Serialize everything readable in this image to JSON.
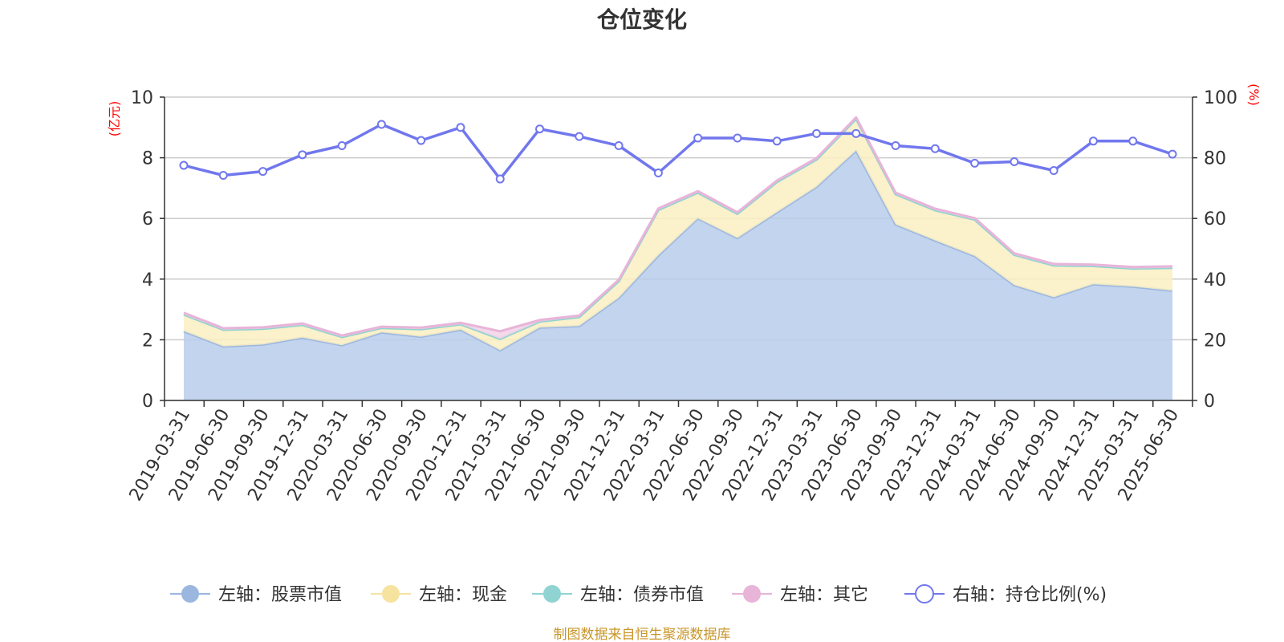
{
  "chart_data": {
    "type": "area",
    "title": "仓位变化",
    "left_unit": "(亿元)",
    "right_unit": "(%)",
    "source": "制图数据来自恒生聚源数据库",
    "y_left_lim": [
      0,
      10
    ],
    "y_left_ticks": [
      "0",
      "2",
      "4",
      "6",
      "8",
      "10"
    ],
    "y_right_lim": [
      0,
      100
    ],
    "y_right_ticks": [
      "0",
      "20",
      "40",
      "60",
      "80",
      "100"
    ],
    "grid": true,
    "legend_position": "bottom",
    "categories": [
      "2019-03-31",
      "2019-06-30",
      "2019-09-30",
      "2019-12-31",
      "2020-03-31",
      "2020-06-30",
      "2020-09-30",
      "2020-12-31",
      "2021-03-31",
      "2021-06-30",
      "2021-09-30",
      "2021-12-31",
      "2022-03-31",
      "2022-06-30",
      "2022-09-30",
      "2022-12-31",
      "2023-03-31",
      "2023-06-30",
      "2023-09-30",
      "2023-12-31",
      "2024-03-31",
      "2024-06-30",
      "2024-09-30",
      "2024-12-31",
      "2025-03-31",
      "2025-06-30"
    ],
    "series": [
      {
        "name": "左轴：股票市值",
        "axis": "left",
        "color": "#9bb7e0",
        "fill": "#b8cdeb",
        "values": [
          2.28,
          1.78,
          1.84,
          2.07,
          1.82,
          2.24,
          2.1,
          2.33,
          1.65,
          2.4,
          2.45,
          3.38,
          4.78,
          6.0,
          5.35,
          6.2,
          7.04,
          8.23,
          5.8,
          5.27,
          4.76,
          3.8,
          3.4,
          3.83,
          3.75,
          3.62
        ]
      },
      {
        "name": "左轴：现金",
        "axis": "left",
        "color": "#f7e3a0",
        "fill": "#faeec2",
        "values": [
          0.55,
          0.55,
          0.52,
          0.42,
          0.27,
          0.15,
          0.25,
          0.18,
          0.38,
          0.2,
          0.3,
          0.55,
          1.5,
          0.85,
          0.8,
          1.0,
          0.9,
          1.05,
          1.0,
          1.0,
          1.2,
          1.0,
          1.05,
          0.6,
          0.6,
          0.75
        ]
      },
      {
        "name": "左轴：债券市值",
        "axis": "left",
        "color": "#8fd3d3",
        "fill": "#bfe6e6",
        "values": [
          0,
          0,
          0,
          0,
          0,
          0,
          0,
          0,
          0,
          0,
          0,
          0,
          0,
          0,
          0,
          0,
          0,
          0,
          0,
          0,
          0,
          0,
          0,
          0,
          0,
          0
        ]
      },
      {
        "name": "左轴：其它",
        "axis": "left",
        "color": "#e8b4d8",
        "fill": "#f2d2e8",
        "values": [
          0.06,
          0.05,
          0.05,
          0.05,
          0.05,
          0.04,
          0.05,
          0.05,
          0.25,
          0.05,
          0.05,
          0.05,
          0.05,
          0.05,
          0.05,
          0.05,
          0.05,
          0.05,
          0.05,
          0.05,
          0.05,
          0.05,
          0.05,
          0.05,
          0.05,
          0.05
        ]
      },
      {
        "name": "右轴：持仓比例(%)",
        "axis": "right",
        "color": "#7177ed",
        "values": [
          77.5,
          74.2,
          75.5,
          81.0,
          84.0,
          91.0,
          85.7,
          90.0,
          73.0,
          89.5,
          87.0,
          84.0,
          75.0,
          86.5,
          86.5,
          85.5,
          88.0,
          88.0,
          84.0,
          83.0,
          78.2,
          78.7,
          75.8,
          85.5,
          85.5,
          81.2
        ]
      }
    ]
  }
}
